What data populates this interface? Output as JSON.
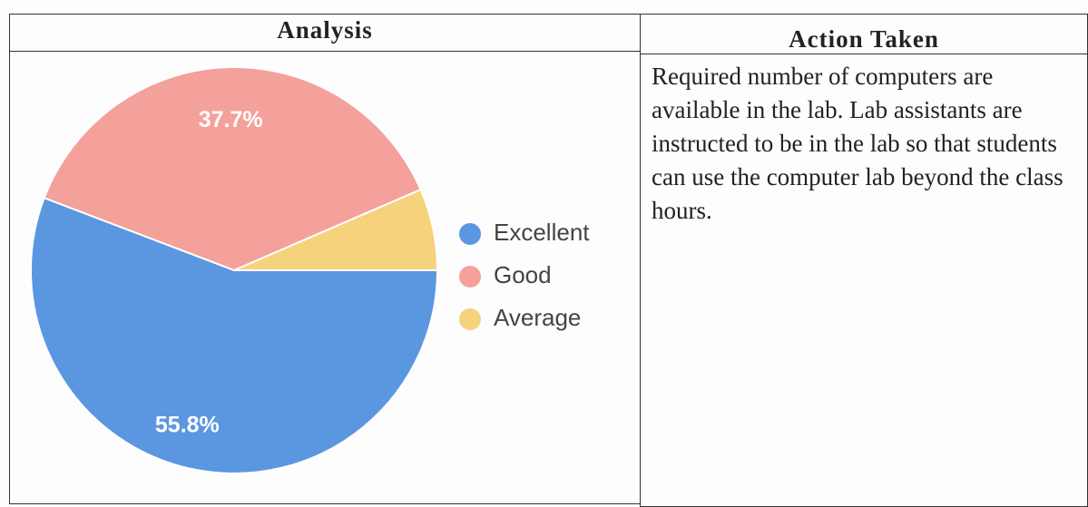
{
  "table": {
    "headers": [
      "Analysis",
      "Action Taken"
    ],
    "action_text": "Required number of computers are available in the lab. Lab assistants are instructed to be in the lab so that students can use the computer lab beyond the class hours."
  },
  "chart_data": {
    "type": "pie",
    "categories": [
      "Excellent",
      "Good",
      "Average"
    ],
    "values": [
      55.8,
      37.7,
      6.5
    ],
    "value_labels": [
      "55.8%",
      "37.7%",
      null
    ],
    "colors": [
      "#5b97e0",
      "#f4a19b",
      "#f6d27c"
    ]
  }
}
